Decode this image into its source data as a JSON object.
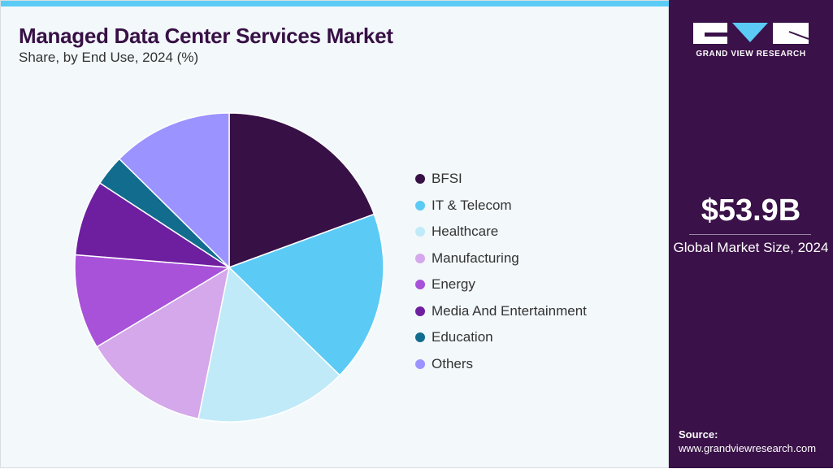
{
  "header": {
    "title": "Managed Data Center Services Market",
    "subtitle": "Share, by End Use, 2024 (%)"
  },
  "chart_data": {
    "type": "pie",
    "title": "Managed Data Center Services Market",
    "subtitle": "Share, by End Use, 2024 (%)",
    "legend_position": "right",
    "slices": [
      {
        "name": "BFSI",
        "value": 19.4,
        "color": "#371045"
      },
      {
        "name": "IT & Telecom",
        "value": 17.9,
        "color": "#5BCBF5"
      },
      {
        "name": "Healthcare",
        "value": 15.9,
        "color": "#C0EAF8"
      },
      {
        "name": "Manufacturing",
        "value": 13.2,
        "color": "#D4A8EA"
      },
      {
        "name": "Energy",
        "value": 9.9,
        "color": "#A752D8"
      },
      {
        "name": "Media And Entertainment",
        "value": 7.9,
        "color": "#6E1FA0"
      },
      {
        "name": "Education",
        "value": 3.2,
        "color": "#126C8E"
      },
      {
        "name": "Others",
        "value": 12.6,
        "color": "#9B93FF"
      }
    ]
  },
  "sidebar": {
    "logo_text": "GRAND VIEW RESEARCH",
    "market_size": "$53.9B",
    "market_size_label": "Global Market Size, 2024",
    "source_label": "Source:",
    "source_url": "www.grandviewresearch.com"
  }
}
